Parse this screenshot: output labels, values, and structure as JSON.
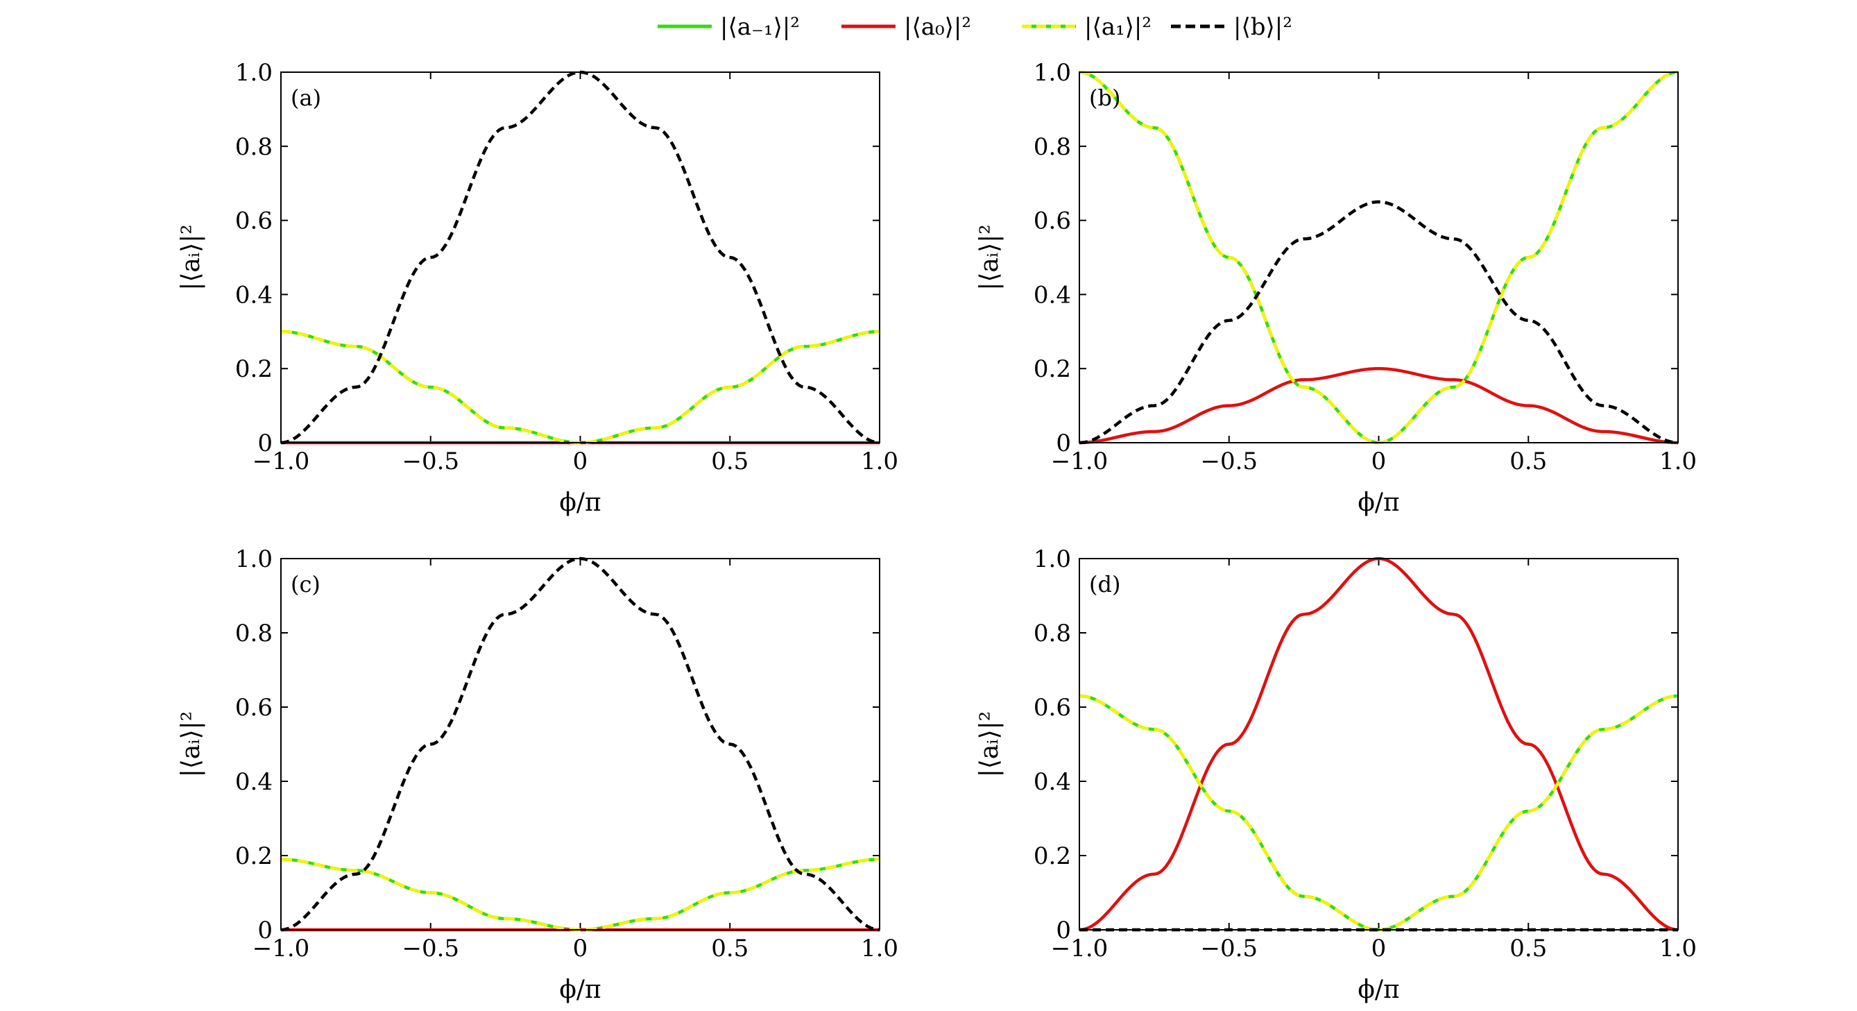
{
  "legend": {
    "entries": [
      {
        "label": "|⟨a₋₁⟩|²",
        "color": "#33dd11",
        "dash": "solid"
      },
      {
        "label": "|⟨a₀⟩|²",
        "color": "#e01010",
        "dash": "solid"
      },
      {
        "label": "|⟨a₁⟩|²",
        "color": "#f2f20a",
        "dash": "dashed"
      },
      {
        "label": "|⟨b⟩|²",
        "color": "#000000",
        "dash": "dashed"
      }
    ]
  },
  "colors": {
    "a_minus1": "#33dd11",
    "a0": "#e01010",
    "a1": "#f2f20a",
    "b": "#000000"
  },
  "chart_data": [
    {
      "type": "line",
      "panel": "(a)",
      "xlabel": "ϕ/π",
      "ylabel": "|⟨aᵢ⟩|²",
      "xlim": [
        -1,
        1
      ],
      "ylim": [
        0,
        1
      ],
      "xticks": [
        -1,
        -0.5,
        0,
        0.5,
        1
      ],
      "xtick_labels": [
        "−1.0",
        "−0.5",
        "0",
        "0.5",
        "1.0"
      ],
      "yticks": [
        0,
        0.2,
        0.4,
        0.6,
        0.8,
        1
      ],
      "ytick_labels": [
        "0",
        "0.2",
        "0.4",
        "0.6",
        "0.8",
        "1.0"
      ],
      "x": [
        -1,
        -0.75,
        -0.5,
        -0.25,
        0,
        0.25,
        0.5,
        0.75,
        1
      ],
      "series": [
        {
          "name": "|⟨a₋₁⟩|²",
          "key": "a_minus1",
          "values": [
            0.3,
            0.26,
            0.15,
            0.04,
            0,
            0.04,
            0.15,
            0.26,
            0.3
          ]
        },
        {
          "name": "|⟨a₀⟩|²",
          "key": "a0",
          "values": [
            0,
            0,
            0,
            0,
            0,
            0,
            0,
            0,
            0
          ]
        },
        {
          "name": "|⟨a₁⟩|²",
          "key": "a1",
          "values": [
            0.3,
            0.26,
            0.15,
            0.04,
            0,
            0.04,
            0.15,
            0.26,
            0.3
          ]
        },
        {
          "name": "|⟨b⟩|²",
          "key": "b",
          "values": [
            0,
            0.15,
            0.5,
            0.85,
            1.0,
            0.85,
            0.5,
            0.15,
            0
          ]
        }
      ]
    },
    {
      "type": "line",
      "panel": "(b)",
      "xlabel": "ϕ/π",
      "ylabel": "|⟨aᵢ⟩|²",
      "xlim": [
        -1,
        1
      ],
      "ylim": [
        0,
        1
      ],
      "xticks": [
        -1,
        -0.5,
        0,
        0.5,
        1
      ],
      "xtick_labels": [
        "−1.0",
        "−0.5",
        "0",
        "0.5",
        "1.0"
      ],
      "yticks": [
        0,
        0.2,
        0.4,
        0.6,
        0.8,
        1
      ],
      "ytick_labels": [
        "0",
        "0.2",
        "0.4",
        "0.6",
        "0.8",
        "1.0"
      ],
      "x": [
        -1,
        -0.75,
        -0.5,
        -0.25,
        0,
        0.25,
        0.5,
        0.75,
        1
      ],
      "series": [
        {
          "name": "|⟨a₋₁⟩|²",
          "key": "a_minus1",
          "values": [
            1.0,
            0.85,
            0.5,
            0.15,
            0,
            0.15,
            0.5,
            0.85,
            1.0
          ]
        },
        {
          "name": "|⟨a₀⟩|²",
          "key": "a0",
          "values": [
            0,
            0.03,
            0.1,
            0.17,
            0.2,
            0.17,
            0.1,
            0.03,
            0
          ]
        },
        {
          "name": "|⟨a₁⟩|²",
          "key": "a1",
          "values": [
            1.0,
            0.85,
            0.5,
            0.15,
            0,
            0.15,
            0.5,
            0.85,
            1.0
          ]
        },
        {
          "name": "|⟨b⟩|²",
          "key": "b",
          "values": [
            0,
            0.1,
            0.33,
            0.55,
            0.65,
            0.55,
            0.33,
            0.1,
            0
          ]
        }
      ]
    },
    {
      "type": "line",
      "panel": "(c)",
      "xlabel": "ϕ/π",
      "ylabel": "|⟨aᵢ⟩|²",
      "xlim": [
        -1,
        1
      ],
      "ylim": [
        0,
        1
      ],
      "xticks": [
        -1,
        -0.5,
        0,
        0.5,
        1
      ],
      "xtick_labels": [
        "−1.0",
        "−0.5",
        "0",
        "0.5",
        "1.0"
      ],
      "yticks": [
        0,
        0.2,
        0.4,
        0.6,
        0.8,
        1
      ],
      "ytick_labels": [
        "0",
        "0.2",
        "0.4",
        "0.6",
        "0.8",
        "1.0"
      ],
      "x": [
        -1,
        -0.75,
        -0.5,
        -0.25,
        0,
        0.25,
        0.5,
        0.75,
        1
      ],
      "series": [
        {
          "name": "|⟨a₋₁⟩|²",
          "key": "a_minus1",
          "values": [
            0.19,
            0.16,
            0.1,
            0.03,
            0,
            0.03,
            0.1,
            0.16,
            0.19
          ]
        },
        {
          "name": "|⟨a₀⟩|²",
          "key": "a0",
          "values": [
            0,
            0,
            0,
            0,
            0,
            0,
            0,
            0,
            0
          ]
        },
        {
          "name": "|⟨a₁⟩|²",
          "key": "a1",
          "values": [
            0.19,
            0.16,
            0.1,
            0.03,
            0,
            0.03,
            0.1,
            0.16,
            0.19
          ]
        },
        {
          "name": "|⟨b⟩|²",
          "key": "b",
          "values": [
            0,
            0.15,
            0.5,
            0.85,
            1.0,
            0.85,
            0.5,
            0.15,
            0
          ]
        }
      ]
    },
    {
      "type": "line",
      "panel": "(d)",
      "xlabel": "ϕ/π",
      "ylabel": "|⟨aᵢ⟩|²",
      "xlim": [
        -1,
        1
      ],
      "ylim": [
        0,
        1
      ],
      "xticks": [
        -1,
        -0.5,
        0,
        0.5,
        1
      ],
      "xtick_labels": [
        "−1.0",
        "−0.5",
        "0",
        "0.5",
        "1.0"
      ],
      "yticks": [
        0,
        0.2,
        0.4,
        0.6,
        0.8,
        1
      ],
      "ytick_labels": [
        "0",
        "0.2",
        "0.4",
        "0.6",
        "0.8",
        "1.0"
      ],
      "x": [
        -1,
        -0.75,
        -0.5,
        -0.25,
        0,
        0.25,
        0.5,
        0.75,
        1
      ],
      "series": [
        {
          "name": "|⟨a₋₁⟩|²",
          "key": "a_minus1",
          "values": [
            0.63,
            0.54,
            0.32,
            0.09,
            0,
            0.09,
            0.32,
            0.54,
            0.63
          ]
        },
        {
          "name": "|⟨a₀⟩|²",
          "key": "a0",
          "values": [
            0,
            0.15,
            0.5,
            0.85,
            1.0,
            0.85,
            0.5,
            0.15,
            0
          ]
        },
        {
          "name": "|⟨a₁⟩|²",
          "key": "a1",
          "values": [
            0.63,
            0.54,
            0.32,
            0.09,
            0,
            0.09,
            0.32,
            0.54,
            0.63
          ]
        },
        {
          "name": "|⟨b⟩|²",
          "key": "b",
          "values": [
            0,
            0,
            0,
            0,
            0,
            0,
            0,
            0,
            0
          ]
        }
      ]
    }
  ]
}
